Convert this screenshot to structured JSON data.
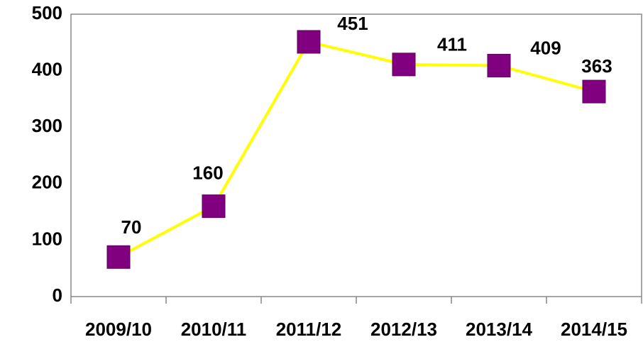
{
  "chart_data": {
    "type": "line",
    "categories": [
      "2009/10",
      "2010/11",
      "2011/12",
      "2012/13",
      "2013/14",
      "2014/15"
    ],
    "values": [
      70,
      160,
      451,
      411,
      409,
      363
    ],
    "line_color": "#ffff00",
    "marker_color": "#800080",
    "ylim": [
      0,
      500
    ],
    "yticks": [
      0,
      100,
      200,
      300,
      400,
      500
    ],
    "grid": false
  }
}
